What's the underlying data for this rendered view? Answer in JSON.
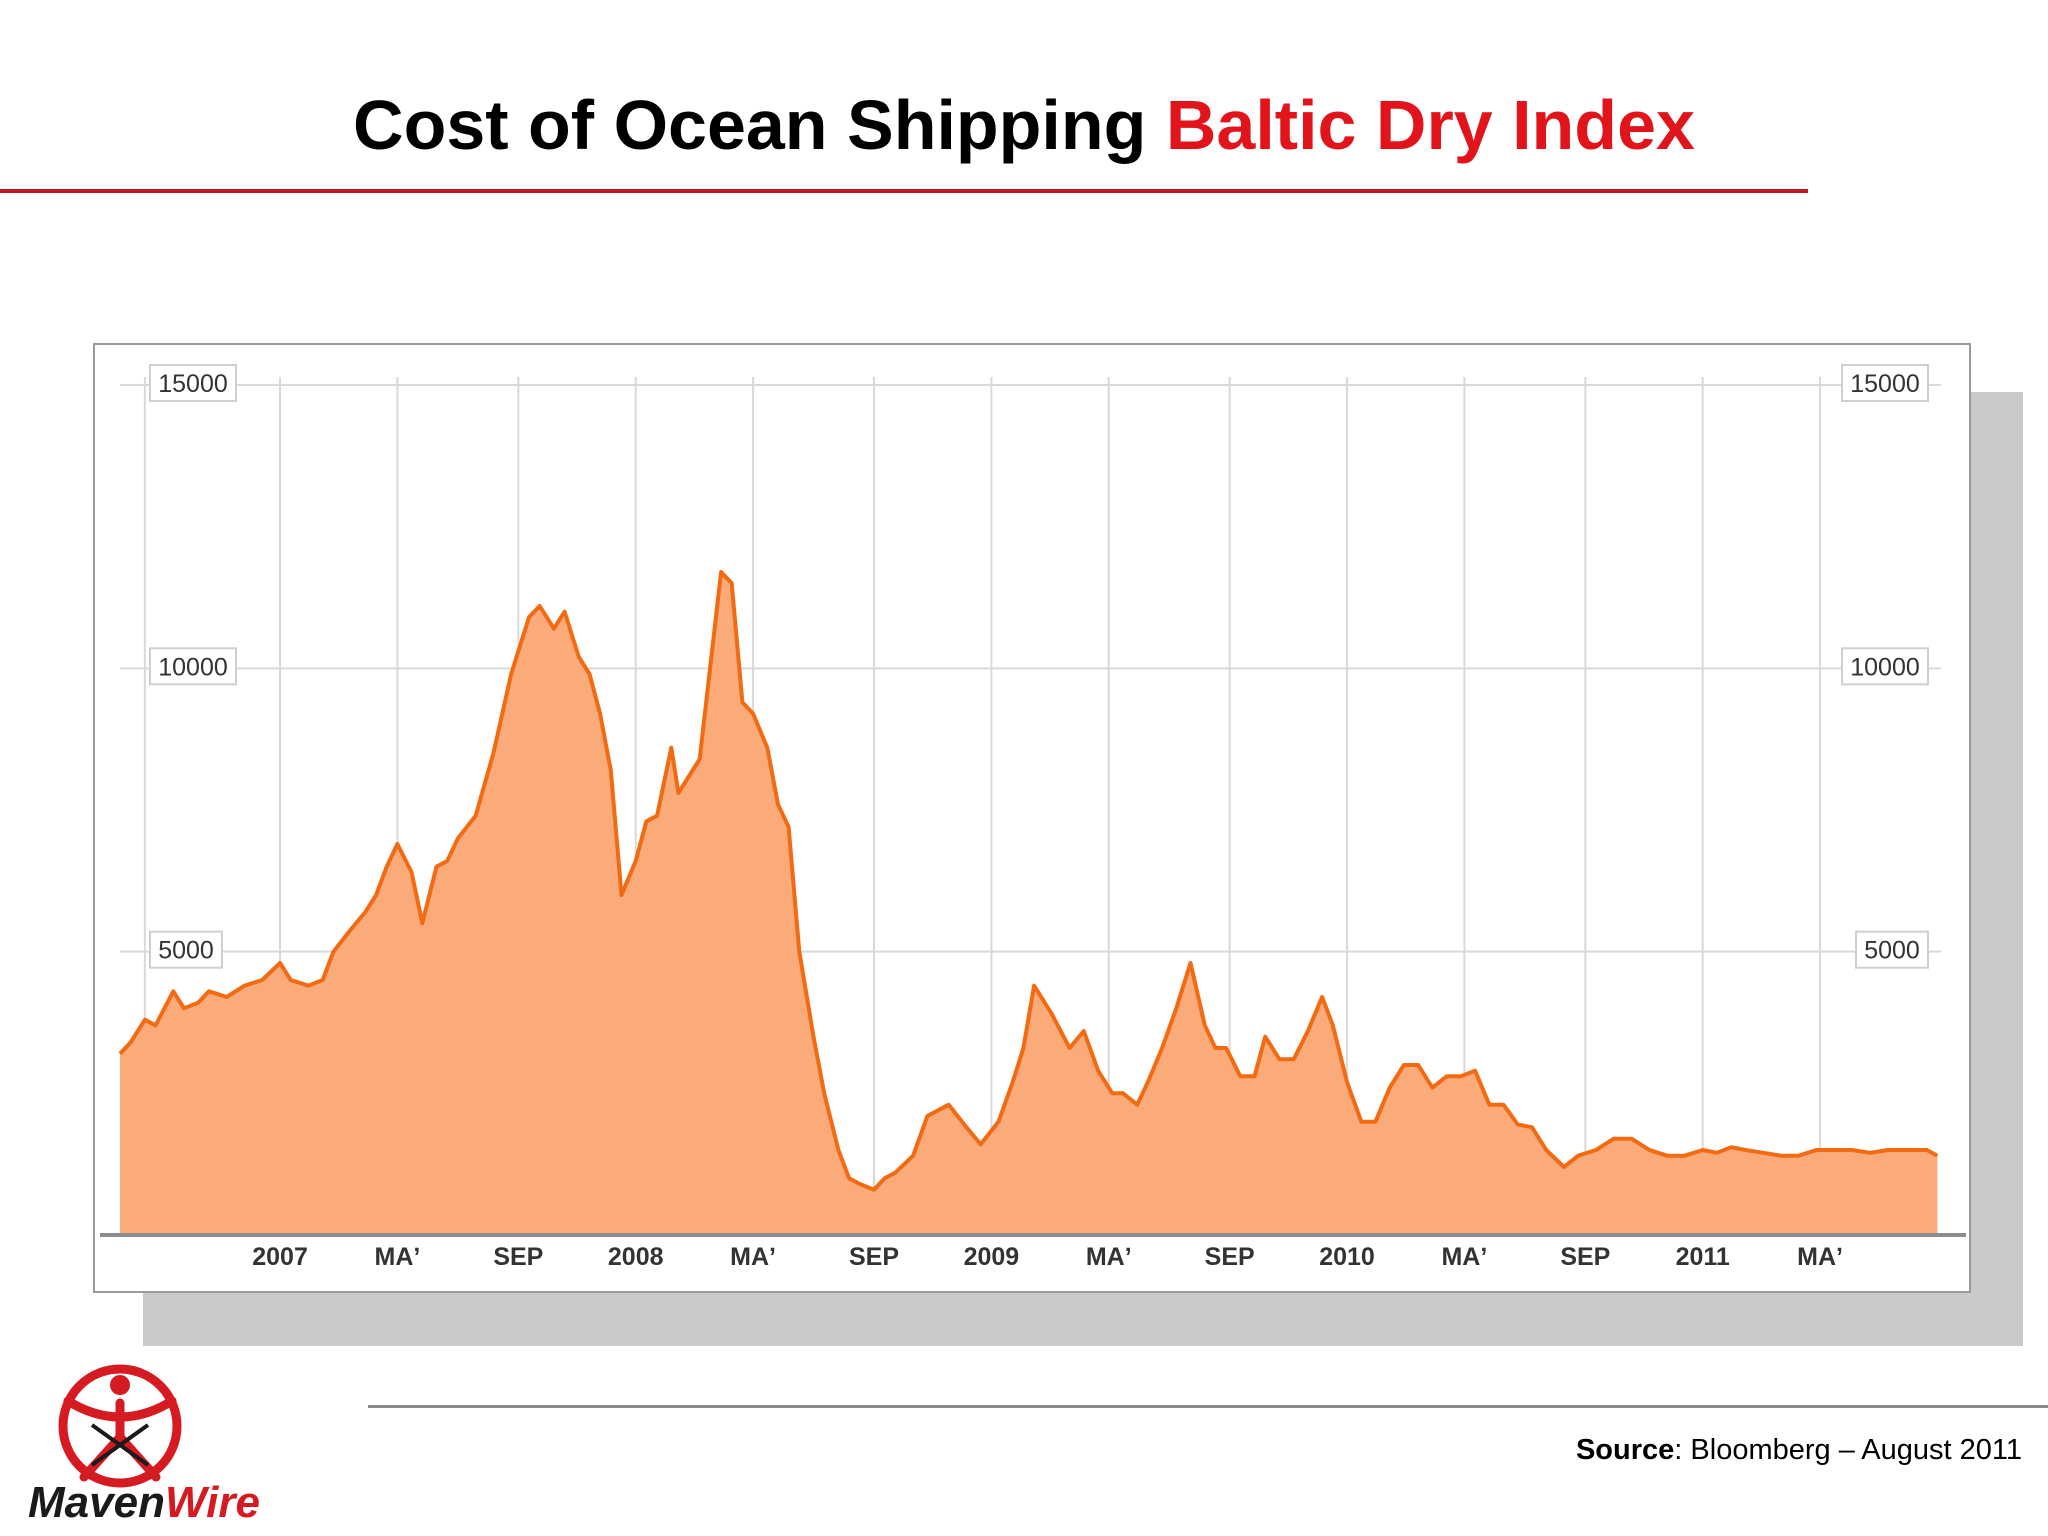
{
  "slide": {
    "title_main": "Cost of Ocean Shipping",
    "title_accent": "Baltic Dry Index",
    "source_label": "Source",
    "source_text": ": Bloomberg – August 2011",
    "logo_text_part1": "Maven",
    "logo_text_part2": "Wire"
  },
  "colors": {
    "title_accent": "#e2141b",
    "rule": "#c0161d",
    "line": "#f26b12",
    "fill": "#fbaa7a",
    "grid": "#d9d9d9",
    "logo_red": "#d61a21"
  },
  "chart_data": {
    "type": "area",
    "title": "",
    "xlabel": "",
    "ylabel": "",
    "ylim": [
      0,
      15000
    ],
    "xlim": [
      2006.55,
      2011.67
    ],
    "grid": true,
    "legend": "none",
    "y_ticks": [
      5000,
      10000,
      15000
    ],
    "y_tick_labels_left": [
      "5000",
      "10000",
      "15000"
    ],
    "y_tick_labels_right": [
      "5000",
      "10000",
      "15000"
    ],
    "x_ticks": [
      {
        "x": 2007.0,
        "label": "2007"
      },
      {
        "x": 2007.33,
        "label": "MAʼ"
      },
      {
        "x": 2007.67,
        "label": "SEP"
      },
      {
        "x": 2008.0,
        "label": "2008"
      },
      {
        "x": 2008.33,
        "label": "MAʼ"
      },
      {
        "x": 2008.67,
        "label": "SEP"
      },
      {
        "x": 2009.0,
        "label": "2009"
      },
      {
        "x": 2009.33,
        "label": "MAʼ"
      },
      {
        "x": 2009.67,
        "label": "SEP"
      },
      {
        "x": 2010.0,
        "label": "2010"
      },
      {
        "x": 2010.33,
        "label": "MAʼ"
      },
      {
        "x": 2010.67,
        "label": "SEP"
      },
      {
        "x": 2011.0,
        "label": "2011"
      },
      {
        "x": 2011.33,
        "label": "MAʼ"
      }
    ],
    "series": [
      {
        "name": "",
        "x": [
          2006.55,
          2006.58,
          2006.62,
          2006.65,
          2006.7,
          2006.73,
          2006.77,
          2006.8,
          2006.85,
          2006.9,
          2006.95,
          2007.0,
          2007.03,
          2007.08,
          2007.12,
          2007.15,
          2007.2,
          2007.24,
          2007.27,
          2007.3,
          2007.33,
          2007.37,
          2007.4,
          2007.44,
          2007.47,
          2007.5,
          2007.55,
          2007.6,
          2007.65,
          2007.7,
          2007.73,
          2007.77,
          2007.8,
          2007.84,
          2007.87,
          2007.9,
          2007.93,
          2007.96,
          2008.0,
          2008.03,
          2008.06,
          2008.1,
          2008.12,
          2008.15,
          2008.18,
          2008.2,
          2008.24,
          2008.27,
          2008.3,
          2008.33,
          2008.37,
          2008.4,
          2008.43,
          2008.46,
          2008.5,
          2008.53,
          2008.57,
          2008.6,
          2008.63,
          2008.67,
          2008.7,
          2008.73,
          2008.78,
          2008.82,
          2008.88,
          2008.93,
          2008.97,
          2009.02,
          2009.06,
          2009.09,
          2009.12,
          2009.17,
          2009.22,
          2009.26,
          2009.3,
          2009.34,
          2009.37,
          2009.41,
          2009.44,
          2009.48,
          2009.52,
          2009.56,
          2009.6,
          2009.63,
          2009.66,
          2009.7,
          2009.74,
          2009.77,
          2009.81,
          2009.85,
          2009.89,
          2009.93,
          2009.96,
          2010.0,
          2010.04,
          2010.08,
          2010.12,
          2010.16,
          2010.2,
          2010.24,
          2010.28,
          2010.32,
          2010.36,
          2010.4,
          2010.44,
          2010.48,
          2010.52,
          2010.56,
          2010.61,
          2010.65,
          2010.7,
          2010.75,
          2010.8,
          2010.85,
          2010.9,
          2010.95,
          2011.0,
          2011.04,
          2011.08,
          2011.12,
          2011.17,
          2011.22,
          2011.27,
          2011.32,
          2011.37,
          2011.42,
          2011.47,
          2011.52,
          2011.57,
          2011.63,
          2011.66
        ],
        "values": [
          3200,
          3400,
          3800,
          3700,
          4300,
          4000,
          4100,
          4300,
          4200,
          4400,
          4500,
          4800,
          4500,
          4400,
          4500,
          5000,
          5400,
          5700,
          6000,
          6500,
          6900,
          6400,
          5500,
          6500,
          6600,
          7000,
          7400,
          8500,
          9900,
          10900,
          11100,
          10700,
          11000,
          10200,
          9900,
          9200,
          8200,
          6000,
          6600,
          7300,
          7400,
          8600,
          7800,
          8100,
          8400,
          9500,
          11700,
          11500,
          9400,
          9200,
          8600,
          7600,
          7200,
          5000,
          3500,
          2500,
          1500,
          1000,
          900,
          800,
          1000,
          1100,
          1400,
          2100,
          2300,
          1900,
          1600,
          2000,
          2700,
          3300,
          4400,
          3900,
          3300,
          3600,
          2900,
          2500,
          2500,
          2300,
          2700,
          3300,
          4000,
          4800,
          3700,
          3300,
          3300,
          2800,
          2800,
          3500,
          3100,
          3100,
          3600,
          4200,
          3700,
          2700,
          2000,
          2000,
          2600,
          3000,
          3000,
          2600,
          2800,
          2800,
          2900,
          2300,
          2300,
          1950,
          1900,
          1500,
          1200,
          1400,
          1500,
          1700,
          1700,
          1500,
          1400,
          1400,
          1500,
          1450,
          1550,
          1500,
          1450,
          1400,
          1400,
          1500,
          1500,
          1500,
          1450,
          1500,
          1500,
          1500,
          1400
        ]
      }
    ]
  }
}
